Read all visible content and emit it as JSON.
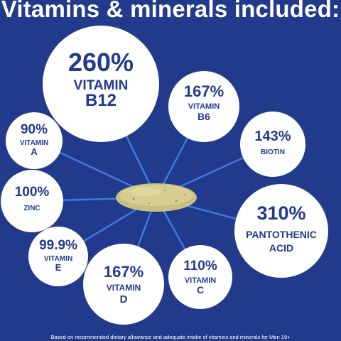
{
  "header": {
    "title": "Vitamins & minerals included:"
  },
  "footer": {
    "note": "Based on recommended dietary allowance and adequate intake of vitamins and minerals for Men 19+"
  },
  "colors": {
    "background": "#223a8c",
    "bubble": "#ffffff",
    "text": "#223a8c",
    "connector": "#3e7be0",
    "tablet": "#c8c07e"
  },
  "nutrients": [
    {
      "id": "vitamin-b12",
      "percent": "260%",
      "lines": [
        "VITAMIN",
        "B12"
      ]
    },
    {
      "id": "vitamin-b6",
      "percent": "167%",
      "lines": [
        "VITAMIN",
        "B6"
      ]
    },
    {
      "id": "vitamin-a",
      "percent": "90%",
      "lines": [
        "VITAMIN",
        "A"
      ]
    },
    {
      "id": "biotin",
      "percent": "143%",
      "lines": [
        "BIOTIN"
      ]
    },
    {
      "id": "zinc",
      "percent": "100%",
      "lines": [
        "ZINC"
      ]
    },
    {
      "id": "pantothenic-acid",
      "percent": "310%",
      "lines": [
        "PANTOTHENIC",
        "ACID"
      ]
    },
    {
      "id": "vitamin-e",
      "percent": "99.9%",
      "lines": [
        "VITAMIN",
        "E"
      ]
    },
    {
      "id": "vitamin-d",
      "percent": "167%",
      "lines": [
        "VITAMIN",
        "D"
      ]
    },
    {
      "id": "vitamin-c",
      "percent": "110%",
      "lines": [
        "VITAMIN",
        "C"
      ]
    }
  ],
  "image": {
    "tablet": "multivitamin-tablet"
  }
}
